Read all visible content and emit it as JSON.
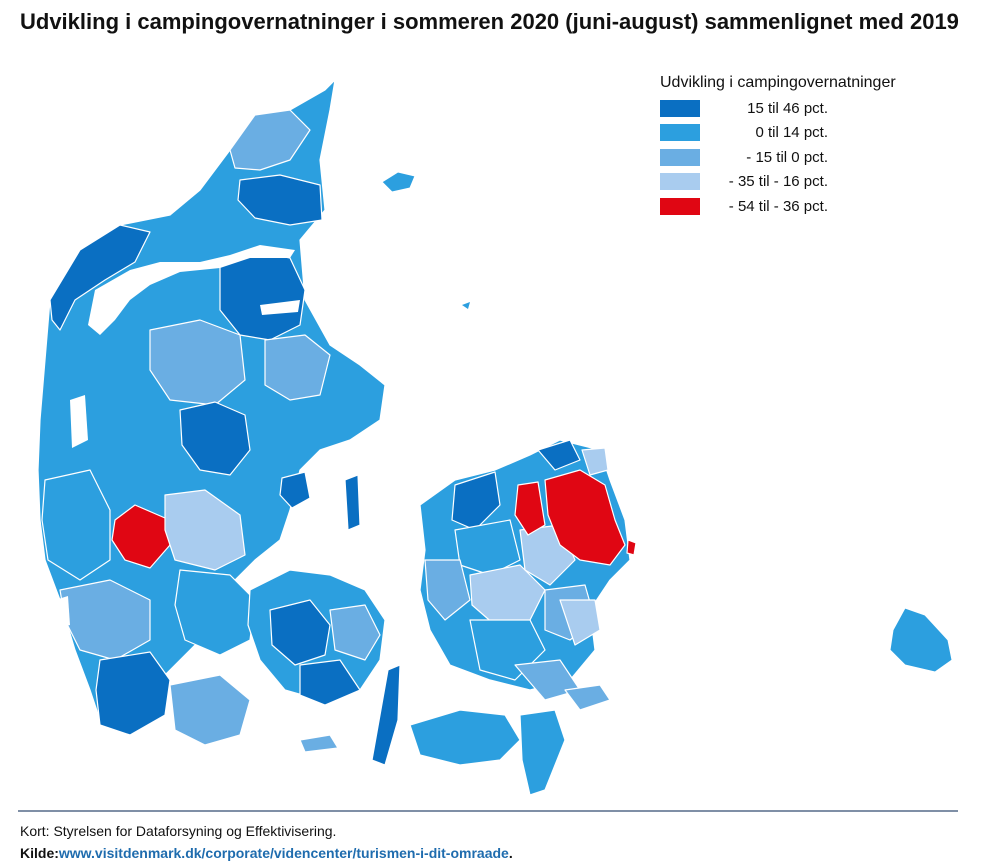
{
  "title": "Udvikling i campingovernatninger i sommeren 2020 (juni-august) sammenlignet med 2019",
  "legend": {
    "title": "Udvikling i campingovernatninger",
    "items": [
      {
        "label": "15 til 46 pct.",
        "color": "#0a6fc2"
      },
      {
        "label": "0 til 14 pct.",
        "color": "#2c9fdf"
      },
      {
        "label": "- 15 til 0 pct.",
        "color": "#6aaee3"
      },
      {
        "label": "- 35 til - 16 pct.",
        "color": "#a9ccef"
      },
      {
        "label": "- 54 til - 36 pct.",
        "color": "#e00613"
      }
    ]
  },
  "footer": {
    "credit": "Kort: Styrelsen for Dataforsyning og Effektivisering.",
    "source_label": "Kilde:",
    "source_url": "www.visitdenmark.dk/corporate/videncenter/turismen-i-dit-omraade",
    "source_end": "."
  }
}
